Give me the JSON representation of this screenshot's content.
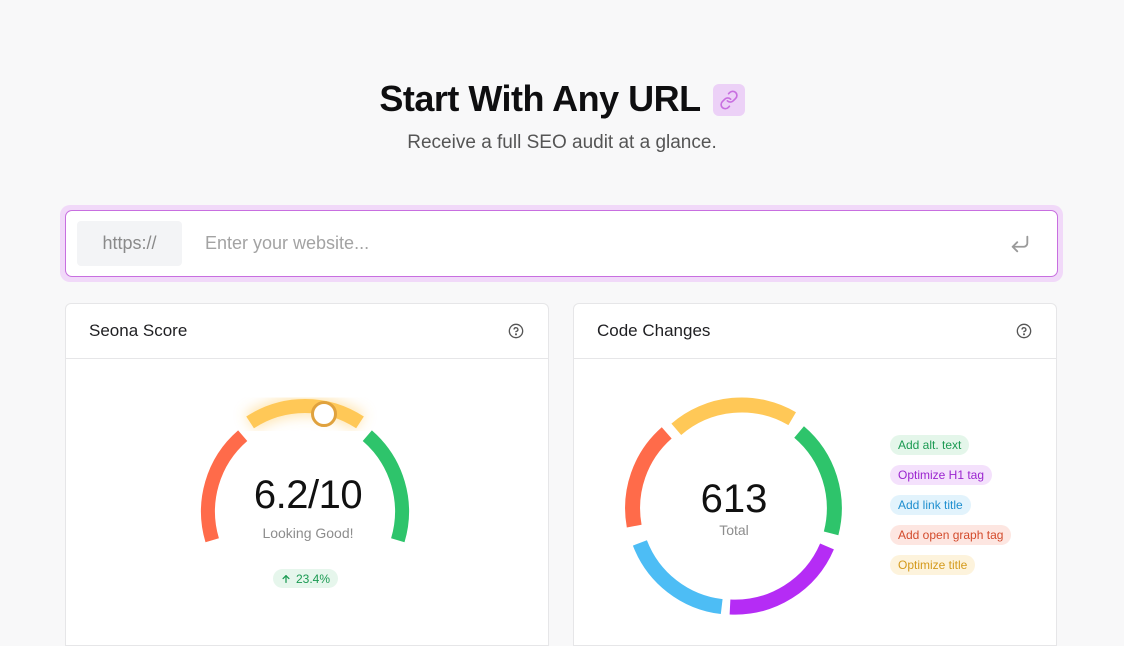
{
  "header": {
    "title": "Start With Any URL",
    "subtitle": "Receive a full SEO audit at a glance.",
    "title_icon": "link-icon",
    "accent": "#c86fe0"
  },
  "url_bar": {
    "prefix": "https://",
    "placeholder": "Enter your website...",
    "value": "",
    "submit_icon": "enter-return-icon"
  },
  "score_card": {
    "title": "Seona Score",
    "help_icon": "question-circle-icon",
    "score": 6.2,
    "max": 10,
    "score_text": "6.2/10",
    "status": "Looking Good!",
    "delta": "23.4%",
    "delta_icon": "arrow-up-icon",
    "gauge_colors": [
      "#ff6b4a",
      "#ffc857",
      "#2ec46b"
    ]
  },
  "changes_card": {
    "title": "Code Changes",
    "help_icon": "question-circle-icon",
    "total": "613",
    "total_label": "Total",
    "segment_colors": [
      "#ffc857",
      "#2ec46b",
      "#b52cf5",
      "#4dbdf5",
      "#ff6b4a"
    ],
    "tags": [
      {
        "label": "Add alt. text",
        "bg": "#e4f6ea",
        "fg": "#1b9a52"
      },
      {
        "label": "Optimize H1 tag",
        "bg": "#f4e1fc",
        "fg": "#9b25cf"
      },
      {
        "label": "Add link title",
        "bg": "#e2f3fc",
        "fg": "#1f8fcf"
      },
      {
        "label": "Add open graph tag",
        "bg": "#fde6e1",
        "fg": "#d34b2c"
      },
      {
        "label": "Optimize title",
        "bg": "#fdf3dc",
        "fg": "#d49a1c"
      }
    ]
  }
}
